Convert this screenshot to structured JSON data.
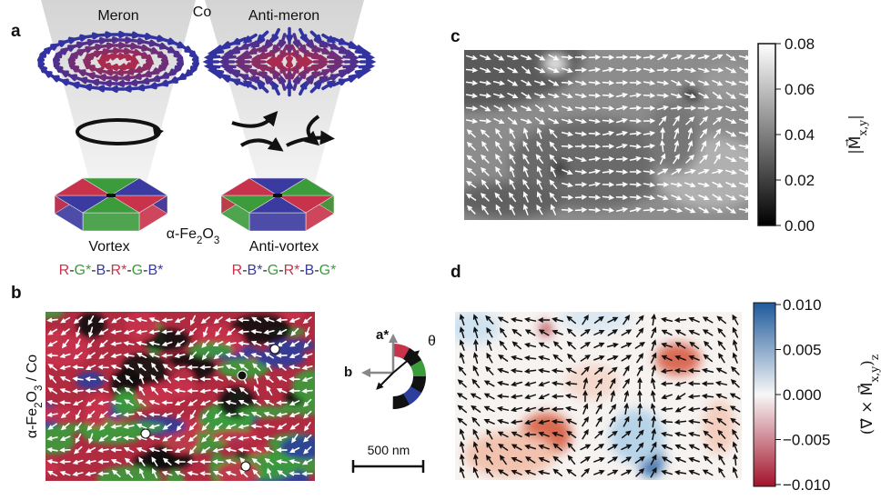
{
  "panel_a": {
    "label": "a",
    "co": "Co",
    "meron": "Meron",
    "anti_meron": "Anti-meron",
    "vortex": "Vortex",
    "anti_vortex": "Anti-vortex",
    "material": [
      {
        "text": "α-Fe"
      },
      {
        "text": "2",
        "sub": true
      },
      {
        "text": "O"
      },
      {
        "text": "3",
        "sub": true
      }
    ],
    "vortex_sequence": [
      {
        "text": "R",
        "color": "#c8324a"
      },
      {
        "text": "-",
        "color": "#222222"
      },
      {
        "text": "G*",
        "color": "#3c9c3c"
      },
      {
        "text": "-",
        "color": "#222222"
      },
      {
        "text": "B",
        "color": "#3a3aa0"
      },
      {
        "text": "-",
        "color": "#222222"
      },
      {
        "text": "R*",
        "color": "#c8324a"
      },
      {
        "text": "-",
        "color": "#222222"
      },
      {
        "text": "G",
        "color": "#3c9c3c"
      },
      {
        "text": "-",
        "color": "#222222"
      },
      {
        "text": "B*",
        "color": "#3a3aa0"
      }
    ],
    "anti_vortex_sequence": [
      {
        "text": "R",
        "color": "#c8324a"
      },
      {
        "text": "-",
        "color": "#222222"
      },
      {
        "text": "B*",
        "color": "#3a3aa0"
      },
      {
        "text": "-",
        "color": "#222222"
      },
      {
        "text": "G",
        "color": "#3c9c3c"
      },
      {
        "text": "-",
        "color": "#222222"
      },
      {
        "text": "R*",
        "color": "#c8324a"
      },
      {
        "text": "-",
        "color": "#222222"
      },
      {
        "text": "B",
        "color": "#3a3aa0"
      },
      {
        "text": "-",
        "color": "#222222"
      },
      {
        "text": "G*",
        "color": "#3c9c3c"
      }
    ]
  },
  "panel_b": {
    "label": "b",
    "sample": [
      {
        "text": "α-Fe"
      },
      {
        "text": "2",
        "sub": true
      },
      {
        "text": "O"
      },
      {
        "text": "3",
        "sub": true
      },
      {
        "text": " / Co"
      }
    ],
    "axis_a": "a*",
    "axis_b": "b",
    "angle": "θ",
    "scale_bar": "500 nm"
  },
  "panel_c": {
    "label": "c",
    "colorbar_ticks": [
      "0.08",
      "0.06",
      "0.04",
      "0.02",
      "0.00"
    ],
    "colorbar_label": [
      {
        "text": "|M⃗"
      },
      {
        "text": "x,y",
        "sub": true
      },
      {
        "text": "|"
      }
    ]
  },
  "panel_d": {
    "label": "d",
    "colorbar_ticks": [
      "0.010",
      "0.005",
      "0.000",
      "−0.005",
      "−0.010"
    ],
    "colorbar_label": [
      {
        "text": "(∇⃗ × M⃗"
      },
      {
        "text": "x,y",
        "sub": true
      },
      {
        "text": ")"
      },
      {
        "text": "z",
        "sub": true
      }
    ]
  }
}
